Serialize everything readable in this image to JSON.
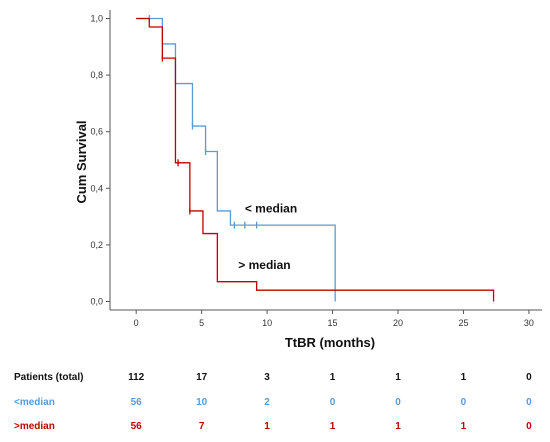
{
  "chart_data": {
    "type": "line",
    "subtype": "kaplan-meier step",
    "xlabel": "TtBR (months)",
    "ylabel": "Cum Survival",
    "xlim": [
      -2,
      31
    ],
    "ylim": [
      -0.03,
      1.03
    ],
    "x_ticks": [
      0,
      5,
      10,
      15,
      20,
      25,
      30
    ],
    "x_tick_labels": [
      "0",
      "5",
      "10",
      "15",
      "20",
      "25",
      "30"
    ],
    "y_ticks": [
      0.0,
      0.2,
      0.4,
      0.6,
      0.8,
      1.0
    ],
    "y_tick_labels": [
      "0,0",
      "0,2",
      "0,4",
      "0,6",
      "0,8",
      "1,0"
    ],
    "grid": false,
    "series": [
      {
        "name": "< median",
        "color": "#5b9bd5",
        "steps": [
          [
            0,
            1.0
          ],
          [
            2.0,
            0.91
          ],
          [
            3.0,
            0.77
          ],
          [
            4.3,
            0.62
          ],
          [
            5.3,
            0.53
          ],
          [
            6.2,
            0.32
          ],
          [
            7.2,
            0.27
          ],
          [
            15.2,
            0.0
          ]
        ],
        "end_x": 15.2,
        "censor": [
          [
            1.0,
            1.0
          ],
          [
            4.3,
            0.62
          ],
          [
            5.3,
            0.53
          ],
          [
            7.5,
            0.27
          ],
          [
            8.3,
            0.27
          ],
          [
            9.2,
            0.27
          ]
        ]
      },
      {
        "name": "> median",
        "color": "#c00000",
        "steps": [
          [
            0,
            1.0
          ],
          [
            1.0,
            0.97
          ],
          [
            2.0,
            0.86
          ],
          [
            3.0,
            0.49
          ],
          [
            4.1,
            0.32
          ],
          [
            5.1,
            0.24
          ],
          [
            6.2,
            0.07
          ],
          [
            9.2,
            0.04
          ]
        ],
        "end_x": 27.3,
        "drop_to_zero_at_end": true,
        "censor": [
          [
            2.0,
            0.86
          ],
          [
            3.2,
            0.49
          ],
          [
            4.1,
            0.32
          ]
        ]
      }
    ],
    "annotations": [
      {
        "text": "< median",
        "x": 8.3,
        "y": 0.315
      },
      {
        "text": "> median",
        "x": 7.8,
        "y": 0.115
      }
    ]
  },
  "risk_table": {
    "rows": [
      {
        "label": "Patients (total)",
        "color": "#111111",
        "values": [
          "112",
          "17",
          "3",
          "1",
          "1",
          "1",
          "0"
        ]
      },
      {
        "label": "<median",
        "color": "#5b9bd5",
        "values": [
          "56",
          "10",
          "2",
          "0",
          "0",
          "0",
          "0"
        ]
      },
      {
        "label": ">median",
        "color": "#c00000",
        "values": [
          "56",
          "7",
          "1",
          "1",
          "1",
          "1",
          "0"
        ]
      }
    ]
  }
}
